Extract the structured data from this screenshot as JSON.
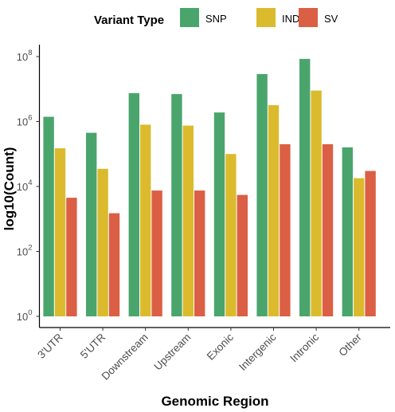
{
  "chart_data": {
    "type": "bar",
    "scale": "log10",
    "legend": {
      "title": "Variant Type",
      "position": "top"
    },
    "xlabel": "Genomic Region",
    "ylabel": "log10(Count)",
    "categories": [
      "3'UTR",
      "5'UTR",
      "Downstream",
      "Upstream",
      "Exonic",
      "Intergenic",
      "Intronic",
      "Other"
    ],
    "ylim": [
      1,
      100000000
    ],
    "yticks": [
      {
        "value": 1,
        "base": "10",
        "exp": "0"
      },
      {
        "value": 100,
        "base": "10",
        "exp": "2"
      },
      {
        "value": 10000,
        "base": "10",
        "exp": "4"
      },
      {
        "value": 1000000,
        "base": "10",
        "exp": "6"
      },
      {
        "value": 100000000,
        "base": "10",
        "exp": "8"
      }
    ],
    "series": [
      {
        "name": "SNP",
        "color": "#4aa56d",
        "values": [
          1400000,
          450000,
          7500000,
          7000000,
          1900000,
          29000000,
          85000000,
          160000
        ]
      },
      {
        "name": "INDEL",
        "color": "#dbbb2d",
        "values": [
          150000,
          35000,
          800000,
          750000,
          100000,
          3200000,
          9000000,
          18000
        ]
      },
      {
        "name": "SV",
        "color": "#db5f45",
        "values": [
          4500,
          1500,
          7500,
          7500,
          5500,
          200000,
          200000,
          30000
        ]
      }
    ],
    "grid": false
  }
}
